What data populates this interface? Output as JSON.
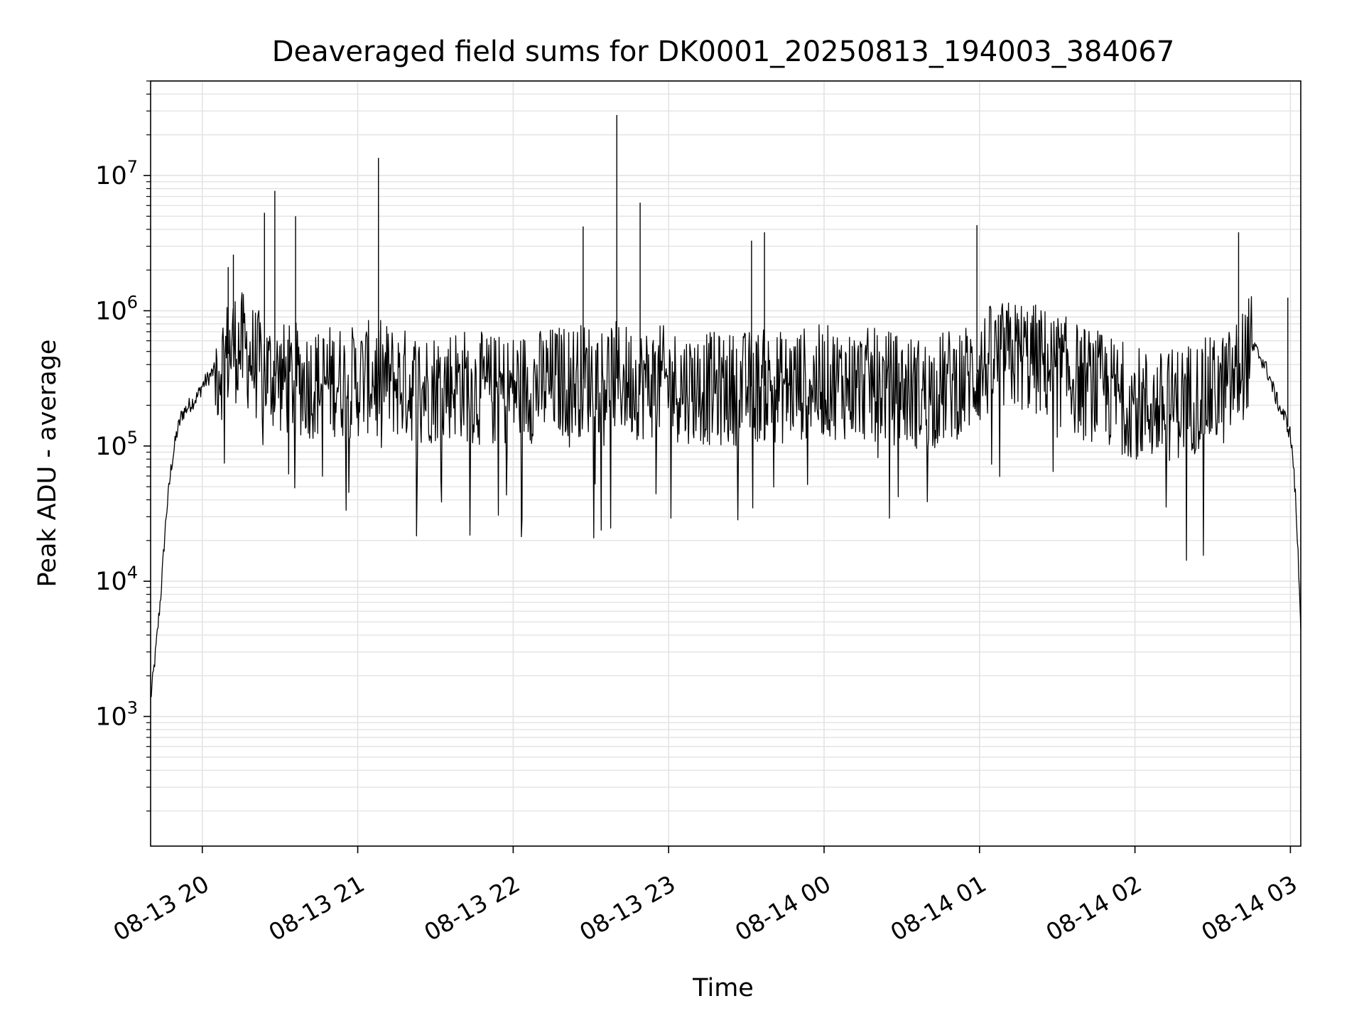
{
  "chart_data": {
    "type": "line",
    "title": "Deaveraged field sums for DK0001_20250813_194003_384067",
    "xlabel": "Time",
    "ylabel": "Peak ADU - average",
    "yscale": "log",
    "ylim": [
      110,
      50000000
    ],
    "xlim": [
      "2025-08-13 19:40:03",
      "2025-08-14 03:04:00"
    ],
    "grid": "major and minor, light gray",
    "line_color": "#000000",
    "x_ticks": [
      {
        "label": "08-13 20",
        "t": "2025-08-13 20:00"
      },
      {
        "label": "08-13 21",
        "t": "2025-08-13 21:00"
      },
      {
        "label": "08-13 22",
        "t": "2025-08-13 22:00"
      },
      {
        "label": "08-13 23",
        "t": "2025-08-13 23:00"
      },
      {
        "label": "08-14 00",
        "t": "2025-08-14 00:00"
      },
      {
        "label": "08-14 01",
        "t": "2025-08-14 01:00"
      },
      {
        "label": "08-14 02",
        "t": "2025-08-14 02:00"
      },
      {
        "label": "08-14 03",
        "t": "2025-08-14 03:00"
      }
    ],
    "y_ticks": [
      {
        "base": "10",
        "exp": "3",
        "value": 1000
      },
      {
        "base": "10",
        "exp": "4",
        "value": 10000
      },
      {
        "base": "10",
        "exp": "5",
        "value": 100000
      },
      {
        "base": "10",
        "exp": "6",
        "value": 1000000
      },
      {
        "base": "10",
        "exp": "7",
        "value": 10000000
      }
    ],
    "series": [
      {
        "x": [
          "2025-08-13 19:40",
          "2025-08-13 19:42",
          "2025-08-13 19:44",
          "2025-08-13 19:46",
          "2025-08-13 19:48",
          "2025-08-13 19:50",
          "2025-08-13 19:52",
          "2025-08-13 19:55",
          "2025-08-13 19:58",
          "2025-08-13 20:00",
          "2025-08-13 20:04",
          "2025-08-13 20:08",
          "2025-08-13 20:10",
          "2025-08-13 20:12",
          "2025-08-13 20:14",
          "2025-08-13 20:16",
          "2025-08-13 20:18",
          "2025-08-13 20:20",
          "2025-08-13 20:22",
          "2025-08-13 20:24",
          "2025-08-13 20:26",
          "2025-08-13 20:28",
          "2025-08-13 20:30",
          "2025-08-13 20:32",
          "2025-08-13 20:34",
          "2025-08-13 20:36",
          "2025-08-13 20:40",
          "2025-08-13 20:44",
          "2025-08-13 20:48",
          "2025-08-13 20:52",
          "2025-08-13 20:56",
          "2025-08-13 21:00",
          "2025-08-13 21:04",
          "2025-08-13 21:08",
          "2025-08-13 21:12",
          "2025-08-13 21:16",
          "2025-08-13 21:20",
          "2025-08-13 21:26",
          "2025-08-13 21:32",
          "2025-08-13 21:38",
          "2025-08-13 21:44",
          "2025-08-13 21:50",
          "2025-08-13 21:56",
          "2025-08-13 22:02",
          "2025-08-13 22:10",
          "2025-08-13 22:18",
          "2025-08-13 22:26",
          "2025-08-13 22:30",
          "2025-08-13 22:34",
          "2025-08-13 22:38",
          "2025-08-13 22:42",
          "2025-08-13 22:46",
          "2025-08-13 22:50",
          "2025-08-13 22:56",
          "2025-08-13 23:04",
          "2025-08-13 23:12",
          "2025-08-13 23:20",
          "2025-08-13 23:28",
          "2025-08-13 23:36",
          "2025-08-13 23:44",
          "2025-08-13 23:52",
          "2025-08-14 00:00",
          "2025-08-14 00:10",
          "2025-08-14 00:20",
          "2025-08-14 00:30",
          "2025-08-14 00:40",
          "2025-08-14 00:50",
          "2025-08-14 00:56",
          "2025-08-14 01:00",
          "2025-08-14 01:04",
          "2025-08-14 01:10",
          "2025-08-14 01:16",
          "2025-08-14 01:22",
          "2025-08-14 01:28",
          "2025-08-14 01:34",
          "2025-08-14 01:40",
          "2025-08-14 01:46",
          "2025-08-14 01:52",
          "2025-08-14 01:58",
          "2025-08-14 02:04",
          "2025-08-14 02:10",
          "2025-08-14 02:16",
          "2025-08-14 02:22",
          "2025-08-14 02:28",
          "2025-08-14 02:34",
          "2025-08-14 02:38",
          "2025-08-14 02:40",
          "2025-08-14 02:42",
          "2025-08-14 02:44",
          "2025-08-14 02:46",
          "2025-08-14 02:48",
          "2025-08-14 02:50",
          "2025-08-14 02:52",
          "2025-08-14 02:54",
          "2025-08-14 02:56",
          "2025-08-14 02:58",
          "2025-08-14 03:00",
          "2025-08-14 03:01",
          "2025-08-14 03:02",
          "2025-08-14 03:03",
          "2025-08-14 03:04"
        ],
        "y": [
          1300,
          3000,
          8000,
          30000,
          70000,
          120000,
          170000,
          200000,
          230000,
          280000,
          350000,
          420000,
          480000,
          550000,
          540000,
          520000,
          470000,
          420000,
          380000,
          360000,
          340000,
          330000,
          320000,
          310000,
          300000,
          310000,
          300000,
          290000,
          300000,
          310000,
          290000,
          300000,
          320000,
          330000,
          310000,
          290000,
          280000,
          270000,
          280000,
          300000,
          270000,
          260000,
          250000,
          270000,
          280000,
          300000,
          310000,
          320000,
          330000,
          320000,
          310000,
          300000,
          290000,
          300000,
          280000,
          270000,
          260000,
          270000,
          280000,
          270000,
          290000,
          300000,
          290000,
          280000,
          260000,
          240000,
          290000,
          320000,
          360000,
          420000,
          450000,
          470000,
          430000,
          380000,
          340000,
          300000,
          270000,
          240000,
          220000,
          200000,
          190000,
          210000,
          230000,
          240000,
          260000,
          300000,
          350000,
          420000,
          500000,
          530000,
          470000,
          400000,
          320000,
          240000,
          190000,
          160000,
          120000,
          80000,
          40000,
          15000,
          5000
        ],
        "spikes": [
          {
            "x": "2025-08-13 20:10",
            "y": 2100000
          },
          {
            "x": "2025-08-13 20:12",
            "y": 2600000
          },
          {
            "x": "2025-08-13 20:24",
            "y": 5300000
          },
          {
            "x": "2025-08-13 20:28",
            "y": 7700000
          },
          {
            "x": "2025-08-13 20:36",
            "y": 5000000
          },
          {
            "x": "2025-08-13 21:08",
            "y": 13500000
          },
          {
            "x": "2025-08-13 22:27",
            "y": 4200000
          },
          {
            "x": "2025-08-13 22:40",
            "y": 28000000
          },
          {
            "x": "2025-08-13 22:49",
            "y": 6300000
          },
          {
            "x": "2025-08-13 23:32",
            "y": 3300000
          },
          {
            "x": "2025-08-13 23:37",
            "y": 3800000
          },
          {
            "x": "2025-08-14 00:59",
            "y": 4300000
          },
          {
            "x": "2025-08-14 02:40",
            "y": 3800000
          },
          {
            "x": "2025-08-14 02:59",
            "y": 1250000
          }
        ]
      }
    ]
  }
}
